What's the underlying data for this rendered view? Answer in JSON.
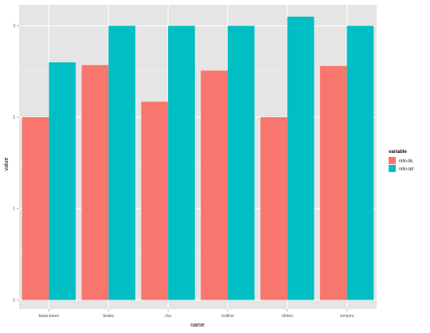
{
  "chart_data": {
    "type": "bar",
    "xlabel": "name",
    "ylabel": "value",
    "categories": [
      "basis.karen",
      "braley",
      "chu",
      "cicilline",
      "clinton",
      "conyers"
    ],
    "series": [
      {
        "name": "ratio.dis",
        "color": "#F8766D",
        "values": [
          2.0,
          2.57,
          2.17,
          2.51,
          2.0,
          2.56
        ]
      },
      {
        "name": "ratio.opt",
        "color": "#00BFC4",
        "values": [
          2.6,
          3.0,
          3.0,
          3.0,
          3.1,
          3.0
        ]
      }
    ],
    "ylim": [
      -0.1,
      3.23
    ],
    "yticks": [
      0,
      1,
      2,
      3
    ],
    "legend": {
      "title": "variable",
      "position": "right"
    },
    "grid": true,
    "panel_background": "#E5E5E5"
  }
}
